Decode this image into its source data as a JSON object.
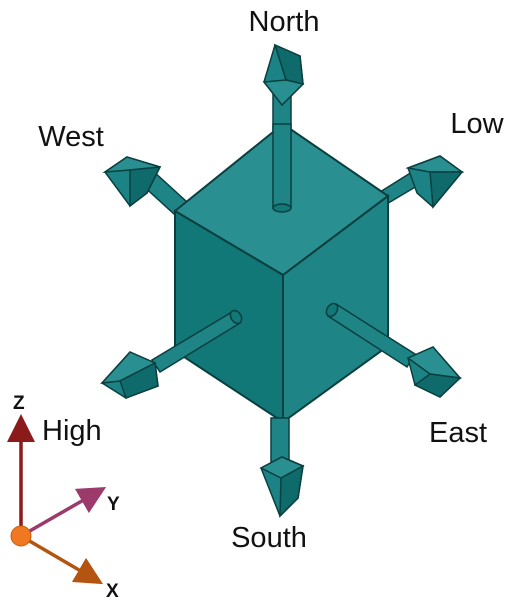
{
  "directions": {
    "north": "North",
    "south": "South",
    "east": "East",
    "west": "West",
    "low": "Low",
    "high": "High"
  },
  "axes": {
    "z": "Z",
    "y": "Y",
    "x": "X"
  },
  "colors": {
    "cube_top": "#2a8f91",
    "cube_left": "#117777",
    "cube_right": "#1e8486",
    "edge": "#0a3f3f",
    "arrow_fill": "#1b8385",
    "arrow_dark": "#0f6a6c",
    "axis_z": "#8b1a1a",
    "axis_y": "#9b3a6b",
    "axis_x": "#b35410",
    "origin": "#f07820"
  }
}
